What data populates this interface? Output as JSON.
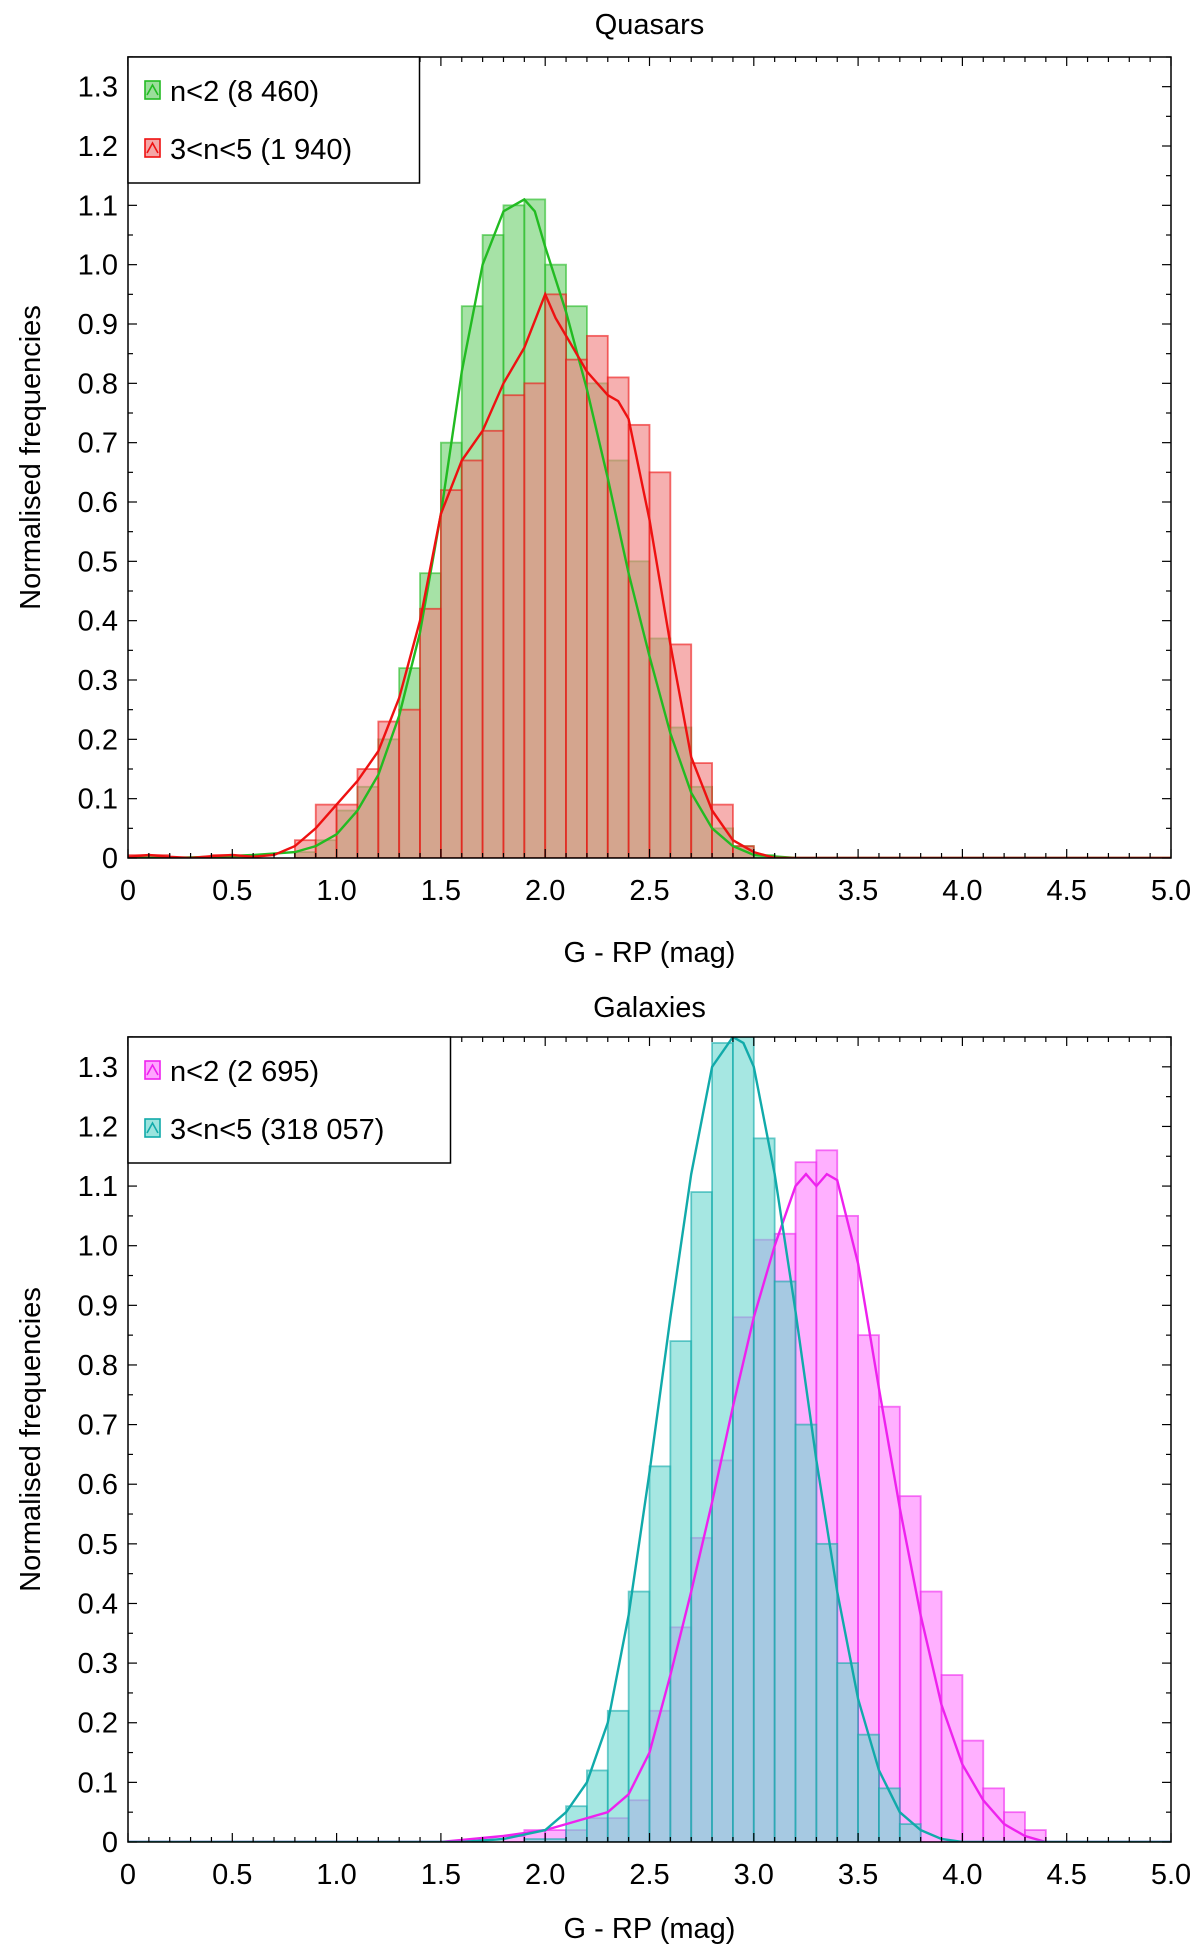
{
  "chart_data": [
    {
      "type": "histogram",
      "title": "Quasars",
      "xlabel": "G - RP (mag)",
      "ylabel": "Normalised frequencies",
      "xlim": [
        0,
        5
      ],
      "ylim": [
        0,
        1.35
      ],
      "xticks": [
        "0",
        "0.5",
        "1.0",
        "1.5",
        "2.0",
        "2.5",
        "3.0",
        "3.5",
        "4.0",
        "4.5",
        "5.0"
      ],
      "yticks": [
        "0",
        "0.1",
        "0.2",
        "0.3",
        "0.4",
        "0.5",
        "0.6",
        "0.7",
        "0.8",
        "0.9",
        "1.0",
        "1.1",
        "1.2",
        "1.3"
      ],
      "grid": false,
      "legend_position": "top-left",
      "bin_width": 0.1,
      "bin_starts": [
        0.0,
        0.1,
        0.2,
        0.3,
        0.4,
        0.5,
        0.6,
        0.7,
        0.8,
        0.9,
        1.0,
        1.1,
        1.2,
        1.3,
        1.4,
        1.5,
        1.6,
        1.7,
        1.8,
        1.9,
        2.0,
        2.1,
        2.2,
        2.3,
        2.4,
        2.5,
        2.6,
        2.7,
        2.8,
        2.9,
        3.0,
        3.1,
        3.2,
        3.3,
        3.4,
        3.5,
        3.6,
        3.7,
        3.8,
        3.9,
        4.0,
        4.1,
        4.2,
        4.3,
        4.4,
        4.5,
        4.6,
        4.7,
        4.8,
        4.9
      ],
      "series": [
        {
          "name": "n<2 (8 460)",
          "fill": "#70d070",
          "line": "#22bb22",
          "hist": [
            0.002,
            0.002,
            0.0,
            0.0,
            0.0,
            0.002,
            0.0,
            0.0,
            0.01,
            0.03,
            0.08,
            0.12,
            0.2,
            0.32,
            0.48,
            0.7,
            0.93,
            1.05,
            1.1,
            1.11,
            1.0,
            0.93,
            0.8,
            0.67,
            0.5,
            0.37,
            0.22,
            0.12,
            0.05,
            0.02,
            0.005,
            0.0,
            0.0,
            0.0,
            0.0,
            0.0,
            0.0,
            0.0,
            0.0,
            0.0,
            0.0,
            0.0,
            0.0,
            0.0,
            0.0,
            0.0,
            0.0,
            0.0,
            0.0,
            0.0
          ],
          "kde_x": [
            0.0,
            0.2,
            0.4,
            0.6,
            0.8,
            0.9,
            1.0,
            1.1,
            1.2,
            1.3,
            1.4,
            1.5,
            1.6,
            1.7,
            1.8,
            1.85,
            1.9,
            1.95,
            2.0,
            2.1,
            2.2,
            2.3,
            2.4,
            2.5,
            2.6,
            2.7,
            2.8,
            2.9,
            3.0,
            3.2,
            5.0
          ],
          "kde_y": [
            0.0,
            0.0,
            0.002,
            0.005,
            0.01,
            0.02,
            0.04,
            0.08,
            0.14,
            0.24,
            0.38,
            0.58,
            0.82,
            1.0,
            1.09,
            1.1,
            1.11,
            1.09,
            1.03,
            0.92,
            0.79,
            0.64,
            0.48,
            0.34,
            0.21,
            0.11,
            0.05,
            0.02,
            0.005,
            0.0,
            0.0
          ]
        },
        {
          "name": "3<n<5 (1 940)",
          "fill": "#f08080",
          "line": "#ee1111",
          "hist": [
            0.005,
            0.005,
            0.0,
            0.0,
            0.005,
            0.0,
            0.0,
            0.0,
            0.03,
            0.09,
            0.09,
            0.15,
            0.23,
            0.25,
            0.42,
            0.62,
            0.67,
            0.72,
            0.78,
            0.8,
            0.95,
            0.84,
            0.88,
            0.81,
            0.73,
            0.65,
            0.36,
            0.16,
            0.09,
            0.02,
            0.0,
            0.0,
            0.0,
            0.0,
            0.0,
            0.0,
            0.0,
            0.0,
            0.0,
            0.0,
            0.0,
            0.0,
            0.0,
            0.0,
            0.0,
            0.0,
            0.0,
            0.0,
            0.0,
            0.0
          ],
          "kde_x": [
            0.0,
            0.1,
            0.2,
            0.3,
            0.4,
            0.5,
            0.6,
            0.7,
            0.8,
            0.9,
            1.0,
            1.1,
            1.2,
            1.3,
            1.4,
            1.5,
            1.6,
            1.7,
            1.8,
            1.9,
            2.0,
            2.05,
            2.1,
            2.2,
            2.3,
            2.35,
            2.4,
            2.5,
            2.6,
            2.7,
            2.8,
            2.9,
            3.0,
            3.1,
            5.0
          ],
          "kde_y": [
            0.002,
            0.005,
            0.002,
            0.0,
            0.003,
            0.005,
            0.002,
            0.005,
            0.02,
            0.05,
            0.09,
            0.13,
            0.18,
            0.27,
            0.4,
            0.58,
            0.67,
            0.72,
            0.8,
            0.86,
            0.95,
            0.91,
            0.88,
            0.82,
            0.78,
            0.77,
            0.74,
            0.57,
            0.36,
            0.17,
            0.08,
            0.03,
            0.01,
            0.0,
            0.0
          ]
        }
      ]
    },
    {
      "type": "histogram",
      "title": "Galaxies",
      "xlabel": "G - RP (mag)",
      "ylabel": "Normalised frequencies",
      "xlim": [
        0,
        5
      ],
      "ylim": [
        0,
        1.35
      ],
      "xticks": [
        "0",
        "0.5",
        "1.0",
        "1.5",
        "2.0",
        "2.5",
        "3.0",
        "3.5",
        "4.0",
        "4.5",
        "5.0"
      ],
      "yticks": [
        "0",
        "0.1",
        "0.2",
        "0.3",
        "0.4",
        "0.5",
        "0.6",
        "0.7",
        "0.8",
        "0.9",
        "1.0",
        "1.1",
        "1.2",
        "1.3"
      ],
      "grid": false,
      "legend_position": "top-left",
      "bin_width": 0.1,
      "bin_starts": [
        0.0,
        0.1,
        0.2,
        0.3,
        0.4,
        0.5,
        0.6,
        0.7,
        0.8,
        0.9,
        1.0,
        1.1,
        1.2,
        1.3,
        1.4,
        1.5,
        1.6,
        1.7,
        1.8,
        1.9,
        2.0,
        2.1,
        2.2,
        2.3,
        2.4,
        2.5,
        2.6,
        2.7,
        2.8,
        2.9,
        3.0,
        3.1,
        3.2,
        3.3,
        3.4,
        3.5,
        3.6,
        3.7,
        3.8,
        3.9,
        4.0,
        4.1,
        4.2,
        4.3,
        4.4,
        4.5,
        4.6,
        4.7,
        4.8,
        4.9
      ],
      "series": [
        {
          "name": "n<2 (2 695)",
          "fill": "#ff80ff",
          "line": "#ee22ee",
          "hist": [
            0.0,
            0.0,
            0.0,
            0.0,
            0.0,
            0.0,
            0.0,
            0.0,
            0.0,
            0.0,
            0.0,
            0.0,
            0.0,
            0.0,
            0.0,
            0.0,
            0.0,
            0.0,
            0.01,
            0.02,
            0.02,
            0.02,
            0.04,
            0.04,
            0.07,
            0.22,
            0.36,
            0.51,
            0.64,
            0.88,
            1.01,
            1.02,
            1.14,
            1.16,
            1.05,
            0.85,
            0.73,
            0.58,
            0.42,
            0.28,
            0.17,
            0.09,
            0.05,
            0.02,
            0.0,
            0.0,
            0.0,
            0.0,
            0.0,
            0.0
          ],
          "kde_x": [
            0.0,
            1.5,
            1.8,
            1.9,
            2.0,
            2.1,
            2.2,
            2.3,
            2.4,
            2.5,
            2.6,
            2.7,
            2.8,
            2.9,
            3.0,
            3.1,
            3.2,
            3.25,
            3.3,
            3.35,
            3.4,
            3.5,
            3.6,
            3.7,
            3.8,
            3.9,
            4.0,
            4.1,
            4.2,
            4.3,
            4.4,
            5.0
          ],
          "kde_y": [
            0.0,
            0.0,
            0.01,
            0.015,
            0.02,
            0.03,
            0.04,
            0.05,
            0.08,
            0.15,
            0.28,
            0.42,
            0.57,
            0.73,
            0.88,
            1.0,
            1.1,
            1.12,
            1.1,
            1.12,
            1.11,
            0.97,
            0.76,
            0.56,
            0.38,
            0.23,
            0.13,
            0.07,
            0.03,
            0.01,
            0.0,
            0.0
          ]
        },
        {
          "name": "3<n<5 (318 057)",
          "fill": "#70d8d0",
          "line": "#11aaaa",
          "hist": [
            0.0,
            0.0,
            0.0,
            0.0,
            0.0,
            0.0,
            0.0,
            0.0,
            0.0,
            0.0,
            0.0,
            0.0,
            0.0,
            0.0,
            0.0,
            0.0,
            0.0,
            0.0,
            0.0,
            0.005,
            0.005,
            0.06,
            0.12,
            0.22,
            0.42,
            0.63,
            0.84,
            1.09,
            1.34,
            1.35,
            1.18,
            0.94,
            0.7,
            0.5,
            0.3,
            0.18,
            0.09,
            0.03,
            0.0,
            0.0,
            0.0,
            0.0,
            0.0,
            0.0,
            0.0,
            0.0,
            0.0,
            0.0,
            0.0,
            0.0
          ],
          "kde_x": [
            0.0,
            1.6,
            1.8,
            2.0,
            2.1,
            2.2,
            2.3,
            2.4,
            2.5,
            2.6,
            2.7,
            2.8,
            2.9,
            2.95,
            3.0,
            3.1,
            3.2,
            3.3,
            3.4,
            3.5,
            3.6,
            3.7,
            3.8,
            3.9,
            4.0,
            5.0
          ],
          "kde_y": [
            0.0,
            0.0,
            0.005,
            0.02,
            0.05,
            0.1,
            0.2,
            0.38,
            0.62,
            0.88,
            1.12,
            1.3,
            1.35,
            1.34,
            1.3,
            1.12,
            0.89,
            0.64,
            0.42,
            0.24,
            0.12,
            0.05,
            0.02,
            0.005,
            0.0,
            0.0
          ]
        }
      ]
    }
  ]
}
